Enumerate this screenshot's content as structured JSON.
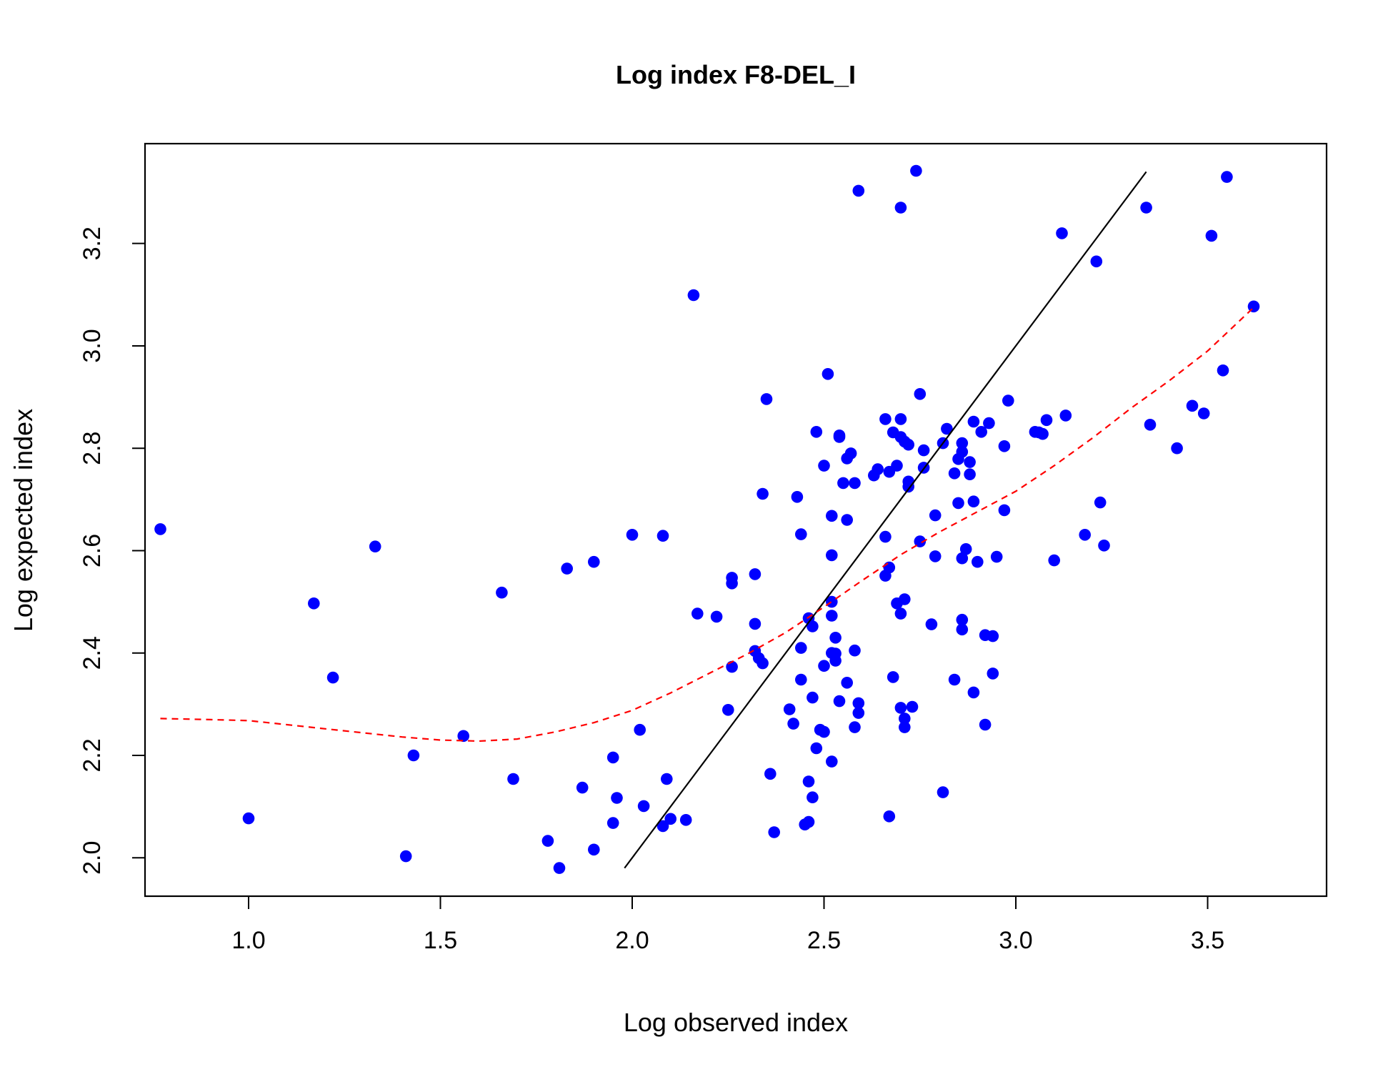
{
  "chart_data": {
    "type": "scatter",
    "title": "Log index F8-DEL_I",
    "xlabel": "Log observed index",
    "ylabel": "Log expected index",
    "xlim": [
      0.73,
      3.81
    ],
    "ylim": [
      1.925,
      3.395
    ],
    "xticks": [
      "1.0",
      "1.5",
      "2.0",
      "2.5",
      "3.0",
      "3.5"
    ],
    "yticks": [
      "2.0",
      "2.2",
      "2.4",
      "2.6",
      "2.8",
      "3.0",
      "3.2"
    ],
    "point_color": "#0000ff",
    "identity_line_color": "#000000",
    "smooth_line_color": "#ff0000",
    "identity_line": [
      [
        1.98,
        1.98
      ],
      [
        3.34,
        3.34
      ]
    ],
    "smooth_line": [
      [
        0.77,
        2.272
      ],
      [
        0.9,
        2.27
      ],
      [
        1.0,
        2.268
      ],
      [
        1.1,
        2.26
      ],
      [
        1.2,
        2.252
      ],
      [
        1.3,
        2.244
      ],
      [
        1.4,
        2.236
      ],
      [
        1.5,
        2.23
      ],
      [
        1.6,
        2.228
      ],
      [
        1.7,
        2.232
      ],
      [
        1.8,
        2.246
      ],
      [
        1.9,
        2.264
      ],
      [
        2.0,
        2.288
      ],
      [
        2.1,
        2.322
      ],
      [
        2.2,
        2.36
      ],
      [
        2.3,
        2.398
      ],
      [
        2.4,
        2.44
      ],
      [
        2.5,
        2.49
      ],
      [
        2.6,
        2.542
      ],
      [
        2.7,
        2.592
      ],
      [
        2.8,
        2.636
      ],
      [
        2.9,
        2.676
      ],
      [
        3.0,
        2.716
      ],
      [
        3.1,
        2.766
      ],
      [
        3.2,
        2.82
      ],
      [
        3.3,
        2.878
      ],
      [
        3.4,
        2.932
      ],
      [
        3.5,
        2.99
      ],
      [
        3.62,
        3.075
      ]
    ],
    "points": [
      [
        0.77,
        2.642
      ],
      [
        1.0,
        2.077
      ],
      [
        1.17,
        2.497
      ],
      [
        1.22,
        2.352
      ],
      [
        1.33,
        2.608
      ],
      [
        1.41,
        2.003
      ],
      [
        1.43,
        2.2
      ],
      [
        1.56,
        2.238
      ],
      [
        1.66,
        2.518
      ],
      [
        1.69,
        2.154
      ],
      [
        1.78,
        2.033
      ],
      [
        1.81,
        1.98
      ],
      [
        1.83,
        2.565
      ],
      [
        1.87,
        2.137
      ],
      [
        1.9,
        2.016
      ],
      [
        1.9,
        2.578
      ],
      [
        1.95,
        2.068
      ],
      [
        1.95,
        2.196
      ],
      [
        1.96,
        2.117
      ],
      [
        2.0,
        2.631
      ],
      [
        2.02,
        2.25
      ],
      [
        2.03,
        2.101
      ],
      [
        2.08,
        2.629
      ],
      [
        2.08,
        2.062
      ],
      [
        2.09,
        2.154
      ],
      [
        2.1,
        2.076
      ],
      [
        2.14,
        2.074
      ],
      [
        2.16,
        3.099
      ],
      [
        2.17,
        2.477
      ],
      [
        2.22,
        2.471
      ],
      [
        2.25,
        2.289
      ],
      [
        2.26,
        2.373
      ],
      [
        2.26,
        2.547
      ],
      [
        2.26,
        2.536
      ],
      [
        2.32,
        2.457
      ],
      [
        2.32,
        2.554
      ],
      [
        2.32,
        2.404
      ],
      [
        2.33,
        2.39
      ],
      [
        2.34,
        2.38
      ],
      [
        2.34,
        2.711
      ],
      [
        2.35,
        2.896
      ],
      [
        2.36,
        2.164
      ],
      [
        2.37,
        2.05
      ],
      [
        2.41,
        2.29
      ],
      [
        2.42,
        2.262
      ],
      [
        2.43,
        2.705
      ],
      [
        2.44,
        2.348
      ],
      [
        2.44,
        2.41
      ],
      [
        2.44,
        2.632
      ],
      [
        2.45,
        2.065
      ],
      [
        2.46,
        2.07
      ],
      [
        2.46,
        2.149
      ],
      [
        2.46,
        2.468
      ],
      [
        2.47,
        2.118
      ],
      [
        2.47,
        2.313
      ],
      [
        2.47,
        2.452
      ],
      [
        2.48,
        2.214
      ],
      [
        2.48,
        2.832
      ],
      [
        2.49,
        2.25
      ],
      [
        2.5,
        2.375
      ],
      [
        2.5,
        2.246
      ],
      [
        2.5,
        2.766
      ],
      [
        2.51,
        2.945
      ],
      [
        2.52,
        2.188
      ],
      [
        2.52,
        2.473
      ],
      [
        2.52,
        2.4
      ],
      [
        2.52,
        2.591
      ],
      [
        2.52,
        2.668
      ],
      [
        2.52,
        2.5
      ],
      [
        2.53,
        2.43
      ],
      [
        2.53,
        2.385
      ],
      [
        2.53,
        2.399
      ],
      [
        2.54,
        2.306
      ],
      [
        2.54,
        2.825
      ],
      [
        2.54,
        2.822
      ],
      [
        2.55,
        2.732
      ],
      [
        2.56,
        2.342
      ],
      [
        2.56,
        2.78
      ],
      [
        2.56,
        2.66
      ],
      [
        2.57,
        2.79
      ],
      [
        2.58,
        2.255
      ],
      [
        2.58,
        2.405
      ],
      [
        2.58,
        2.732
      ],
      [
        2.59,
        2.302
      ],
      [
        2.59,
        2.283
      ],
      [
        2.59,
        3.303
      ],
      [
        2.63,
        2.747
      ],
      [
        2.64,
        2.759
      ],
      [
        2.66,
        2.857
      ],
      [
        2.66,
        2.627
      ],
      [
        2.66,
        2.551
      ],
      [
        2.67,
        2.754
      ],
      [
        2.67,
        2.567
      ],
      [
        2.67,
        2.081
      ],
      [
        2.68,
        2.831
      ],
      [
        2.68,
        2.353
      ],
      [
        2.69,
        2.497
      ],
      [
        2.69,
        2.766
      ],
      [
        2.7,
        2.857
      ],
      [
        2.7,
        2.822
      ],
      [
        2.7,
        2.477
      ],
      [
        2.7,
        3.27
      ],
      [
        2.7,
        2.293
      ],
      [
        2.71,
        2.272
      ],
      [
        2.71,
        2.255
      ],
      [
        2.71,
        2.505
      ],
      [
        2.71,
        2.813
      ],
      [
        2.72,
        2.807
      ],
      [
        2.72,
        2.725
      ],
      [
        2.72,
        2.735
      ],
      [
        2.73,
        2.295
      ],
      [
        2.74,
        3.342
      ],
      [
        2.75,
        2.906
      ],
      [
        2.75,
        2.618
      ],
      [
        2.76,
        2.762
      ],
      [
        2.76,
        2.796
      ],
      [
        2.78,
        2.456
      ],
      [
        2.79,
        2.669
      ],
      [
        2.79,
        2.589
      ],
      [
        2.81,
        2.81
      ],
      [
        2.81,
        2.128
      ],
      [
        2.82,
        2.838
      ],
      [
        2.84,
        2.751
      ],
      [
        2.84,
        2.348
      ],
      [
        2.85,
        2.779
      ],
      [
        2.85,
        2.693
      ],
      [
        2.86,
        2.81
      ],
      [
        2.86,
        2.793
      ],
      [
        2.86,
        2.465
      ],
      [
        2.86,
        2.446
      ],
      [
        2.86,
        2.585
      ],
      [
        2.87,
        2.603
      ],
      [
        2.88,
        2.773
      ],
      [
        2.88,
        2.749
      ],
      [
        2.89,
        2.696
      ],
      [
        2.89,
        2.852
      ],
      [
        2.89,
        2.323
      ],
      [
        2.9,
        2.578
      ],
      [
        2.91,
        2.832
      ],
      [
        2.92,
        2.26
      ],
      [
        2.92,
        2.435
      ],
      [
        2.93,
        2.849
      ],
      [
        2.94,
        2.433
      ],
      [
        2.94,
        2.36
      ],
      [
        2.95,
        2.588
      ],
      [
        2.97,
        2.679
      ],
      [
        2.97,
        2.804
      ],
      [
        2.98,
        2.893
      ],
      [
        3.05,
        2.832
      ],
      [
        3.06,
        2.831
      ],
      [
        3.07,
        2.828
      ],
      [
        3.08,
        2.855
      ],
      [
        3.1,
        2.581
      ],
      [
        3.12,
        3.22
      ],
      [
        3.13,
        2.864
      ],
      [
        3.18,
        2.631
      ],
      [
        3.21,
        3.165
      ],
      [
        3.22,
        2.694
      ],
      [
        3.23,
        2.61
      ],
      [
        3.34,
        3.27
      ],
      [
        3.35,
        2.846
      ],
      [
        3.42,
        2.8
      ],
      [
        3.46,
        2.883
      ],
      [
        3.49,
        2.868
      ],
      [
        3.51,
        3.215
      ],
      [
        3.54,
        2.952
      ],
      [
        3.55,
        3.33
      ],
      [
        3.62,
        3.077
      ]
    ]
  }
}
